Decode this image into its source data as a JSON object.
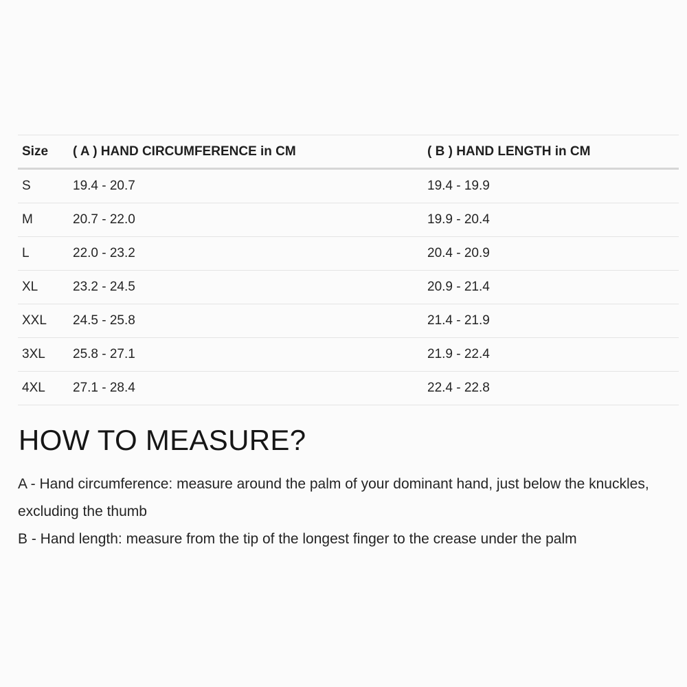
{
  "size_chart": {
    "columns": {
      "size": "Size",
      "circumference": "( A ) HAND CIRCUMFERENCE in CM",
      "length": "( B ) HAND LENGTH in CM"
    },
    "rows": [
      {
        "size": "S",
        "circumference": "19.4 - 20.7",
        "length": "19.4 - 19.9"
      },
      {
        "size": "M",
        "circumference": "20.7 - 22.0",
        "length": "19.9 - 20.4"
      },
      {
        "size": "L",
        "circumference": "22.0 - 23.2",
        "length": "20.4 - 20.9"
      },
      {
        "size": "XL",
        "circumference": "23.2 - 24.5",
        "length": "20.9 - 21.4"
      },
      {
        "size": "XXL",
        "circumference": "24.5 - 25.8",
        "length": "21.4 - 21.9"
      },
      {
        "size": "3XL",
        "circumference": "25.8 - 27.1",
        "length": "21.9 - 22.4"
      },
      {
        "size": "4XL",
        "circumference": "27.1 - 28.4",
        "length": "22.4 - 22.8"
      }
    ]
  },
  "how_to_measure": {
    "heading": "HOW TO MEASURE?",
    "instruction_a": "A - Hand circumference: measure around the palm of your dominant hand, just below the knuckles, excluding the thumb",
    "instruction_b": "B - Hand length: measure from the tip of the longest finger to the crease under the palm"
  },
  "colors": {
    "background": "#fbfbfb",
    "text": "#212121",
    "row_border": "#e4e4e4",
    "header_border": "#d6d6d6"
  }
}
